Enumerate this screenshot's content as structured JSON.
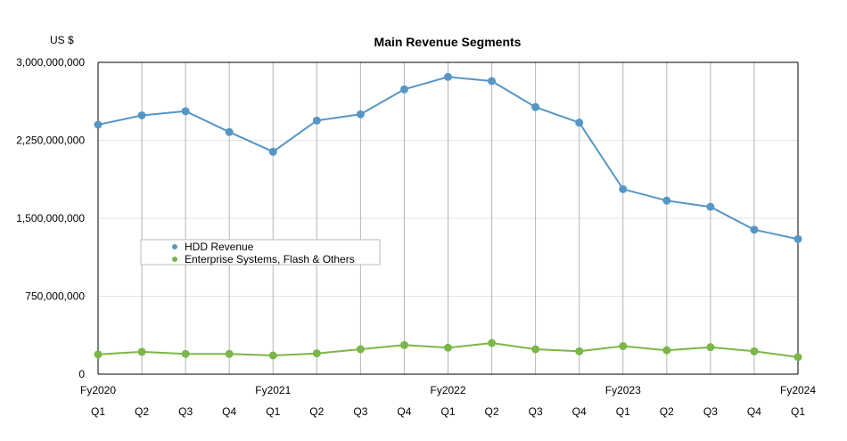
{
  "chart_data": {
    "type": "line",
    "title": "Main Revenue Segments",
    "ylabel": "US $",
    "xlabel": "",
    "ylim": [
      0,
      3000000000
    ],
    "yticks": [
      0,
      750000000,
      1500000000,
      2250000000,
      3000000000
    ],
    "ytick_labels": [
      "0",
      "750,000,000",
      "1,500,000,000",
      "2,250,000,000",
      "3,000,000,000"
    ],
    "grid": true,
    "legend_position": "middle-left",
    "categories": [
      "Q1",
      "Q2",
      "Q3",
      "Q4",
      "Q1",
      "Q2",
      "Q3",
      "Q4",
      "Q1",
      "Q2",
      "Q3",
      "Q4",
      "Q1",
      "Q2",
      "Q3",
      "Q4",
      "Q1"
    ],
    "fiscal_year_labels": [
      {
        "index": 0,
        "label": "Fy2020"
      },
      {
        "index": 4,
        "label": "Fy2021"
      },
      {
        "index": 8,
        "label": "Fy2022"
      },
      {
        "index": 12,
        "label": "Fy2023"
      },
      {
        "index": 16,
        "label": "Fy2024"
      }
    ],
    "series": [
      {
        "name": "HDD Revenue",
        "color": "#5596c5",
        "values": [
          2400000000,
          2490000000,
          2530000000,
          2330000000,
          2140000000,
          2440000000,
          2500000000,
          2740000000,
          2860000000,
          2820000000,
          2570000000,
          2420000000,
          1780000000,
          1670000000,
          1610000000,
          1390000000,
          1300000000
        ]
      },
      {
        "name": "Enterprise Systems, Flash & Others",
        "color": "#7ab648",
        "values": [
          190000000,
          215000000,
          195000000,
          195000000,
          180000000,
          200000000,
          240000000,
          280000000,
          255000000,
          300000000,
          240000000,
          220000000,
          270000000,
          230000000,
          260000000,
          220000000,
          165000000
        ]
      }
    ]
  }
}
